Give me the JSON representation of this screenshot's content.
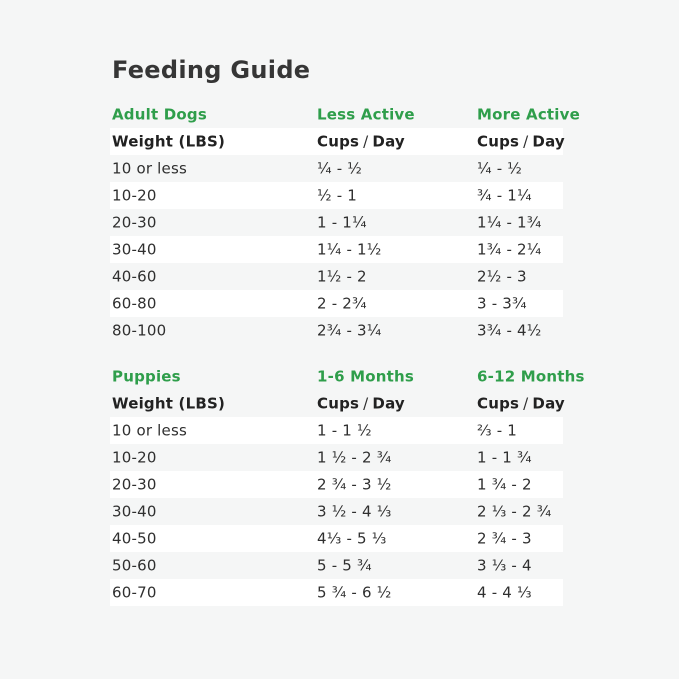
{
  "page": {
    "title": "Feeding Guide",
    "background_color": "#f5f6f6",
    "accent_green": "#2f9e4b",
    "row_highlight_color": "#ffffff",
    "text_color": "#2f2f2f"
  },
  "labels": {
    "cups": "Cups",
    "slash": "/",
    "day": "Day"
  },
  "chart_data": [
    {
      "type": "table",
      "section": "Adult Dogs",
      "col_groups": [
        "Less Active",
        "More Active"
      ],
      "header": [
        "Weight (LBS)",
        "Cups / Day",
        "Cups / Day"
      ],
      "rows": [
        [
          "10 or less",
          "¼ - ½",
          "¼ - ½"
        ],
        [
          "10-20",
          "½ - 1",
          "¾ - 1¼"
        ],
        [
          "20-30",
          "1 - 1¼",
          "1¼ - 1¾"
        ],
        [
          "30-40",
          "1¼ - 1½",
          "1¾ - 2¼"
        ],
        [
          "40-60",
          "1½ - 2",
          "2½ - 3"
        ],
        [
          "60-80",
          "2 - 2¾",
          "3 - 3¾"
        ],
        [
          "80-100",
          "2¾ - 3¼",
          "3¾ - 4½"
        ]
      ]
    },
    {
      "type": "table",
      "section": "Puppies",
      "col_groups": [
        "1-6 Months",
        "6-12 Months"
      ],
      "header": [
        "Weight (LBS)",
        "Cups / Day",
        "Cups / Day"
      ],
      "rows": [
        [
          "10 or less",
          "1 - 1 ½",
          "⅔ - 1"
        ],
        [
          "10-20",
          "1 ½ - 2 ¾",
          "1 - 1 ¾"
        ],
        [
          "20-30",
          "2 ¾ - 3 ½",
          "1 ¾ - 2"
        ],
        [
          "30-40",
          "3 ½ - 4 ⅓",
          "2 ⅓ - 2 ¾"
        ],
        [
          "40-50",
          "4⅓ - 5 ⅓",
          "2 ¾ - 3"
        ],
        [
          "50-60",
          "5 - 5 ¾",
          "3 ⅓ - 4"
        ],
        [
          "60-70",
          "5 ¾ - 6 ½",
          "4 - 4 ⅓"
        ]
      ]
    }
  ]
}
